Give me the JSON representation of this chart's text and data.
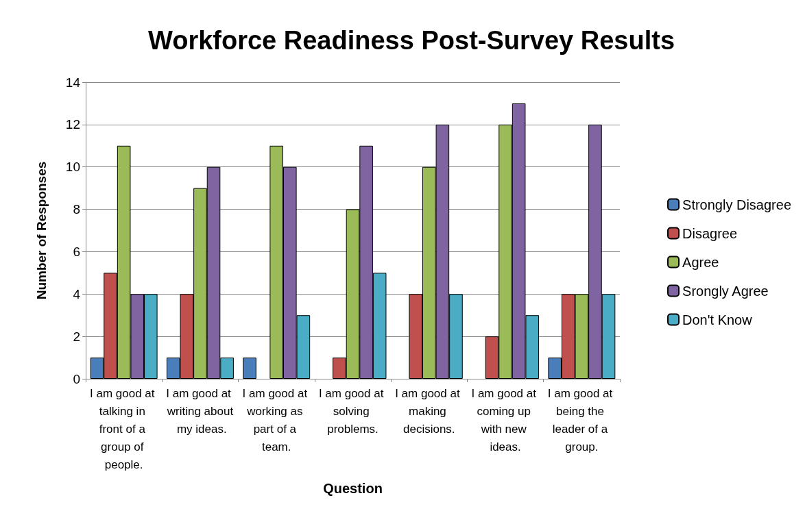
{
  "chart_data": {
    "type": "bar",
    "title": "Workforce Readiness Post-Survey Results",
    "xlabel": "Question",
    "ylabel": "Number of Responses",
    "categories": [
      "I am good at talking in front of a group of people.",
      "I am good at writing about my ideas.",
      "I am good at working as part of a team.",
      "I am good at solving problems.",
      "I am good at making decisions.",
      "I am good at coming up with new ideas.",
      "I am good at being the leader of a group."
    ],
    "series": [
      {
        "name": "Strongly Disagree",
        "color": "#4a7ebb",
        "values": [
          1,
          1,
          1,
          0,
          0,
          0,
          1
        ]
      },
      {
        "name": "Disagree",
        "color": "#c0504d",
        "values": [
          5,
          4,
          0,
          1,
          4,
          2,
          4
        ]
      },
      {
        "name": "Agree",
        "color": "#9bbb59",
        "values": [
          11,
          9,
          11,
          8,
          10,
          12,
          4
        ]
      },
      {
        "name": "Srongly Agree",
        "color": "#8064a2",
        "values": [
          4,
          10,
          10,
          11,
          12,
          13,
          12
        ]
      },
      {
        "name": "Don't Know",
        "color": "#4bacc6",
        "values": [
          4,
          1,
          3,
          5,
          4,
          3,
          4
        ]
      }
    ],
    "ylim": [
      0,
      14
    ],
    "yticks": [
      0,
      2,
      4,
      6,
      8,
      10,
      12,
      14
    ],
    "grid": "y",
    "legend": "right"
  }
}
